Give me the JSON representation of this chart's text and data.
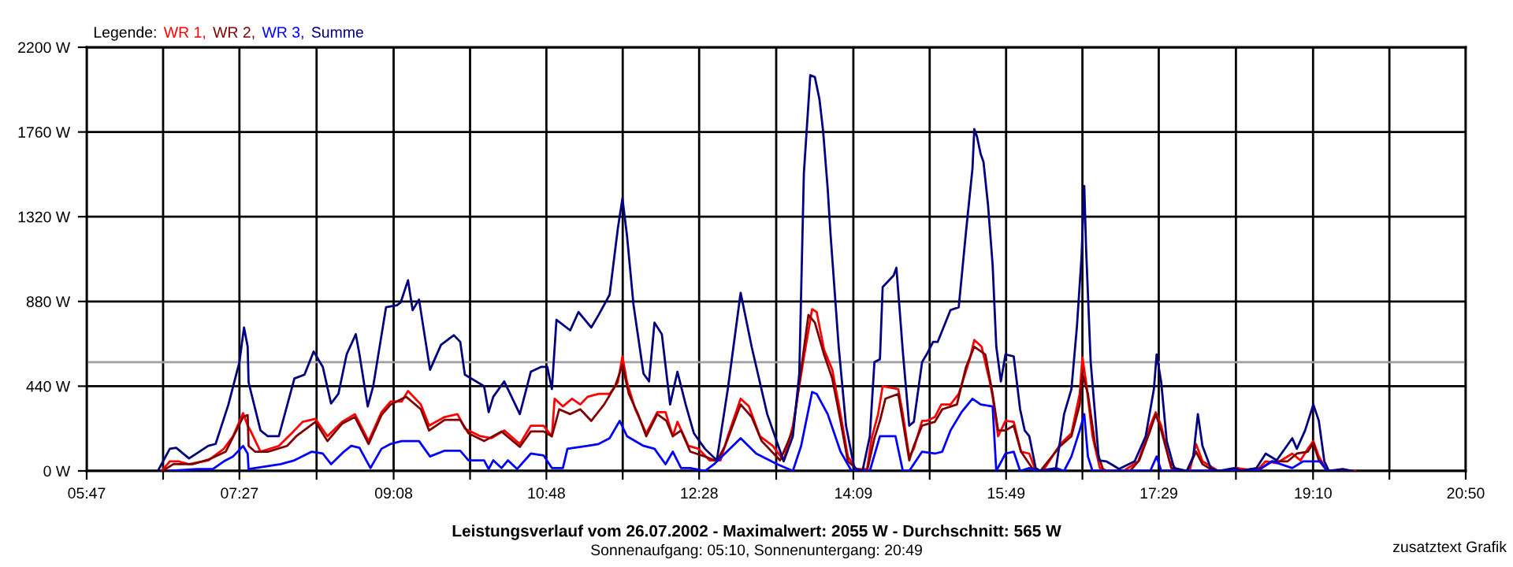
{
  "chart_data": {
    "type": "line",
    "title": "Leistungsverlauf vom 26.07.2002 - Maximalwert: 2055 W - Durchschnitt: 565 W",
    "subtitle": "Sonnenaufgang: 05:10, Sonnenuntergang: 20:49",
    "legend_title": "Legende:",
    "legend": "top left",
    "grid": true,
    "marker": "none",
    "line_style": "solid",
    "annotations": [
      "zusatztext Grafik"
    ],
    "xlim": [
      5.783,
      20.833
    ],
    "xticks": [
      {
        "value": 5.783,
        "label": "05:47"
      },
      {
        "value": 6.617,
        "label": null
      },
      {
        "value": 7.45,
        "label": "07:27"
      },
      {
        "value": 8.292,
        "label": null
      },
      {
        "value": 9.133,
        "label": "09:08"
      },
      {
        "value": 9.967,
        "label": null
      },
      {
        "value": 10.8,
        "label": "10:48"
      },
      {
        "value": 11.633,
        "label": null
      },
      {
        "value": 12.467,
        "label": "12:28"
      },
      {
        "value": 13.308,
        "label": null
      },
      {
        "value": 14.15,
        "label": "14:09"
      },
      {
        "value": 14.983,
        "label": null
      },
      {
        "value": 15.817,
        "label": "15:49"
      },
      {
        "value": 16.65,
        "label": null
      },
      {
        "value": 17.483,
        "label": "17:29"
      },
      {
        "value": 18.325,
        "label": null
      },
      {
        "value": 19.167,
        "label": "19:10"
      },
      {
        "value": 20.0,
        "label": null
      },
      {
        "value": 20.833,
        "label": "20:50"
      }
    ],
    "ylim": [
      0,
      2200
    ],
    "yticks": [
      {
        "value": 0,
        "label": "0 W"
      },
      {
        "value": 440,
        "label": "440 W"
      },
      {
        "value": 880,
        "label": "880 W"
      },
      {
        "value": 1320,
        "label": "1320 W"
      },
      {
        "value": 1760,
        "label": "1760 W"
      },
      {
        "value": 2200,
        "label": "2200 W"
      }
    ],
    "ref_lines": [
      {
        "axis": "y",
        "value": 565,
        "color": "#a0a0a0"
      }
    ],
    "series": [
      {
        "name": "WR 1,",
        "color": "#ff0000",
        "x": [
          6.61,
          6.69,
          6.78,
          6.9,
          7.11,
          7.28,
          7.38,
          7.49,
          7.54,
          7.57,
          7.68,
          7.88,
          8.02,
          8.14,
          8.28,
          8.41,
          8.57,
          8.71,
          8.86,
          9.0,
          9.1,
          9.22,
          9.29,
          9.43,
          9.52,
          9.69,
          9.83,
          9.91,
          10.08,
          10.2,
          10.34,
          10.51,
          10.63,
          10.77,
          10.86,
          10.89,
          10.98,
          11.08,
          11.17,
          11.25,
          11.37,
          11.49,
          11.58,
          11.63,
          11.68,
          11.77,
          11.89,
          12.01,
          12.1,
          12.18,
          12.23,
          12.35,
          12.46,
          12.58,
          12.7,
          12.78,
          12.92,
          13.01,
          13.13,
          13.27,
          13.39,
          13.49,
          13.61,
          13.7,
          13.75,
          13.83,
          13.92,
          14.01,
          14.09,
          14.18,
          14.3,
          14.35,
          14.42,
          14.47,
          14.64,
          14.69,
          14.76,
          14.81,
          14.9,
          14.95,
          15.04,
          15.11,
          15.21,
          15.3,
          15.42,
          15.47,
          15.55,
          15.64,
          15.67,
          15.73,
          15.81,
          15.9,
          15.98,
          16.07,
          16.14,
          16.19,
          16.24,
          16.41,
          16.53,
          16.62,
          16.65,
          16.69,
          16.76,
          16.84,
          16.93,
          17.1,
          17.26,
          17.39,
          17.45,
          17.51,
          17.6,
          17.69,
          17.82,
          17.89,
          17.96,
          18.13,
          18.29,
          18.34,
          18.55,
          18.65,
          18.77,
          18.94,
          19.03,
          19.11,
          19.17,
          19.23,
          19.32,
          19.51,
          19.63
        ],
        "values": [
          5,
          50,
          50,
          35,
          55,
          115,
          180,
          300,
          235,
          210,
          100,
          130,
          195,
          255,
          270,
          180,
          255,
          295,
          155,
          305,
          360,
          360,
          415,
          345,
          235,
          280,
          295,
          220,
          180,
          170,
          210,
          140,
          235,
          235,
          180,
          375,
          335,
          375,
          345,
          385,
          400,
          400,
          460,
          595,
          460,
          320,
          195,
          305,
          305,
          180,
          255,
          130,
          115,
          55,
          55,
          180,
          375,
          335,
          180,
          130,
          55,
          235,
          590,
          840,
          825,
          630,
          525,
          295,
          75,
          10,
          10,
          170,
          295,
          440,
          425,
          295,
          75,
          115,
          260,
          260,
          280,
          345,
          345,
          400,
          580,
          680,
          645,
          460,
          385,
          180,
          260,
          255,
          100,
          90,
          0,
          0,
          15,
          140,
          195,
          400,
          590,
          460,
          180,
          15,
          0,
          0,
          50,
          235,
          305,
          235,
          50,
          0,
          0,
          140,
          50,
          0,
          0,
          15,
          0,
          50,
          40,
          90,
          55,
          115,
          155,
          75,
          0,
          0,
          0
        ]
      },
      {
        "name": "WR 2,",
        "color": "#800000",
        "x": [
          6.61,
          6.73,
          6.94,
          7.12,
          7.3,
          7.49,
          7.54,
          7.55,
          7.62,
          7.76,
          7.97,
          8.07,
          8.28,
          8.41,
          8.57,
          8.71,
          8.86,
          9.0,
          9.1,
          9.27,
          9.43,
          9.52,
          9.69,
          9.86,
          9.95,
          10.12,
          10.31,
          10.51,
          10.63,
          10.77,
          10.86,
          10.94,
          11.06,
          11.17,
          11.29,
          11.43,
          11.55,
          11.63,
          11.7,
          11.8,
          11.89,
          12.01,
          12.11,
          12.18,
          12.27,
          12.37,
          12.53,
          12.66,
          12.75,
          12.92,
          13.04,
          13.15,
          13.35,
          13.49,
          13.58,
          13.66,
          13.73,
          13.83,
          13.92,
          14.01,
          14.09,
          14.21,
          14.3,
          14.38,
          14.44,
          14.5,
          14.64,
          14.69,
          14.76,
          14.81,
          14.9,
          15.04,
          15.12,
          15.28,
          15.38,
          15.47,
          15.59,
          15.67,
          15.73,
          15.81,
          15.9,
          15.98,
          16.1,
          16.19,
          16.41,
          16.53,
          16.62,
          16.65,
          16.71,
          16.79,
          16.88,
          17.17,
          17.27,
          17.39,
          17.45,
          17.51,
          17.62,
          17.79,
          17.89,
          17.96,
          18.08,
          18.31,
          18.6,
          18.72,
          18.89,
          18.99,
          19.11,
          19.17,
          19.23,
          19.32,
          19.51
        ],
        "values": [
          0,
          35,
          35,
          60,
          100,
          280,
          290,
          130,
          100,
          100,
          130,
          180,
          255,
          155,
          245,
          280,
          140,
          290,
          345,
          385,
          320,
          210,
          265,
          265,
          195,
          155,
          205,
          125,
          205,
          205,
          180,
          320,
          295,
          320,
          260,
          345,
          440,
          550,
          400,
          295,
          180,
          295,
          260,
          180,
          210,
          100,
          75,
          50,
          130,
          345,
          280,
          155,
          55,
          210,
          525,
          810,
          770,
          605,
          480,
          260,
          50,
          0,
          0,
          170,
          260,
          375,
          400,
          260,
          55,
          130,
          235,
          255,
          320,
          345,
          540,
          645,
          605,
          400,
          210,
          210,
          235,
          100,
          15,
          0,
          130,
          180,
          345,
          505,
          400,
          130,
          0,
          0,
          55,
          210,
          295,
          210,
          15,
          0,
          100,
          35,
          0,
          0,
          15,
          50,
          50,
          90,
          100,
          145,
          55,
          0,
          0
        ]
      },
      {
        "name": "WR 3,",
        "color": "#0000ff",
        "x": [
          6.69,
          6.99,
          7.16,
          7.28,
          7.38,
          7.49,
          7.54,
          7.55,
          7.62,
          7.9,
          8.05,
          8.24,
          8.36,
          8.45,
          8.59,
          8.67,
          8.76,
          8.88,
          9.0,
          9.1,
          9.22,
          9.41,
          9.53,
          9.69,
          9.86,
          9.95,
          10.12,
          10.17,
          10.22,
          10.31,
          10.38,
          10.48,
          10.63,
          10.77,
          10.86,
          10.98,
          11.03,
          11.25,
          11.37,
          11.49,
          11.6,
          11.68,
          11.86,
          11.98,
          12.1,
          12.18,
          12.27,
          12.37,
          12.53,
          12.63,
          12.92,
          13.09,
          13.32,
          13.49,
          13.58,
          13.7,
          13.75,
          13.87,
          14.01,
          14.13,
          14.33,
          14.44,
          14.61,
          14.69,
          14.76,
          14.9,
          15.04,
          15.12,
          15.21,
          15.33,
          15.45,
          15.54,
          15.67,
          15.71,
          15.81,
          15.9,
          15.97,
          16.07,
          16.16,
          16.36,
          16.45,
          16.53,
          16.62,
          16.67,
          16.71,
          16.76,
          17.39,
          17.46,
          17.51,
          17.88,
          18.56,
          18.72,
          18.94,
          19.06,
          19.15,
          19.25,
          19.32
        ],
        "values": [
          0,
          10,
          10,
          50,
          75,
          130,
          90,
          10,
          15,
          35,
          55,
          100,
          90,
          35,
          100,
          130,
          120,
          15,
          115,
          140,
          155,
          155,
          75,
          105,
          105,
          55,
          55,
          10,
          55,
          15,
          55,
          10,
          90,
          80,
          15,
          15,
          115,
          130,
          140,
          170,
          260,
          180,
          130,
          115,
          35,
          100,
          15,
          15,
          0,
          35,
          170,
          90,
          35,
          0,
          130,
          410,
          400,
          295,
          100,
          0,
          0,
          180,
          180,
          0,
          0,
          100,
          90,
          100,
          210,
          305,
          375,
          345,
          335,
          0,
          90,
          100,
          0,
          15,
          0,
          15,
          0,
          75,
          210,
          295,
          75,
          0,
          0,
          75,
          0,
          0,
          0,
          50,
          15,
          50,
          50,
          50,
          0
        ]
      },
      {
        "name": "Summe",
        "color": "#000080",
        "x": [
          6.56,
          6.69,
          6.76,
          6.9,
          7.11,
          7.19,
          7.33,
          7.45,
          7.5,
          7.54,
          7.55,
          7.68,
          7.76,
          7.88,
          8.05,
          8.16,
          8.26,
          8.36,
          8.45,
          8.53,
          8.62,
          8.72,
          8.76,
          8.85,
          8.91,
          9.05,
          9.17,
          9.21,
          9.29,
          9.34,
          9.41,
          9.53,
          9.65,
          9.79,
          9.86,
          9.91,
          10.12,
          10.17,
          10.22,
          10.34,
          10.51,
          10.63,
          10.74,
          10.81,
          10.86,
          10.91,
          11.06,
          11.15,
          11.29,
          11.37,
          11.49,
          11.58,
          11.63,
          11.68,
          11.75,
          11.86,
          11.92,
          11.98,
          12.06,
          12.15,
          12.23,
          12.32,
          12.41,
          12.53,
          12.66,
          12.78,
          12.92,
          13.04,
          13.21,
          13.39,
          13.49,
          13.56,
          13.61,
          13.68,
          13.73,
          13.78,
          13.82,
          13.87,
          13.9,
          13.99,
          14.07,
          14.16,
          14.25,
          14.33,
          14.38,
          14.44,
          14.47,
          14.59,
          14.62,
          14.69,
          14.76,
          14.81,
          14.9,
          14.95,
          15.02,
          15.07,
          15.21,
          15.3,
          15.38,
          15.45,
          15.47,
          15.5,
          15.54,
          15.57,
          15.62,
          15.67,
          15.71,
          15.76,
          15.81,
          15.9,
          15.97,
          16.02,
          16.07,
          16.14,
          16.19,
          16.36,
          16.45,
          16.53,
          16.59,
          16.64,
          16.67,
          16.69,
          16.74,
          16.83,
          16.91,
          17.05,
          17.22,
          17.34,
          17.43,
          17.46,
          17.51,
          17.57,
          17.65,
          17.79,
          17.86,
          17.91,
          17.96,
          18.05,
          18.13,
          18.31,
          18.39,
          18.55,
          18.65,
          18.77,
          18.94,
          18.99,
          19.08,
          19.17,
          19.23,
          19.29,
          19.34,
          19.49,
          19.6
        ],
        "values": [
          0,
          115,
          120,
          65,
          130,
          140,
          345,
          565,
          745,
          645,
          460,
          210,
          180,
          180,
          480,
          500,
          620,
          540,
          350,
          400,
          605,
          710,
          605,
          335,
          440,
          850,
          860,
          875,
          990,
          835,
          890,
          525,
          655,
          705,
          670,
          500,
          440,
          305,
          385,
          465,
          295,
          515,
          540,
          540,
          425,
          785,
          730,
          825,
          745,
          810,
          915,
          1260,
          1415,
          1220,
          865,
          505,
          465,
          770,
          710,
          345,
          515,
          345,
          195,
          115,
          55,
          425,
          925,
          645,
          295,
          50,
          180,
          505,
          1545,
          2055,
          2045,
          1930,
          1765,
          1465,
          1235,
          645,
          235,
          15,
          0,
          180,
          565,
          580,
          955,
          1015,
          1055,
          620,
          235,
          255,
          565,
          605,
          670,
          670,
          835,
          850,
          1245,
          1570,
          1775,
          1735,
          1645,
          1605,
          1380,
          1070,
          645,
          465,
          605,
          595,
          320,
          210,
          180,
          15,
          0,
          10,
          295,
          425,
          750,
          1110,
          1480,
          1155,
          565,
          55,
          50,
          10,
          50,
          180,
          425,
          605,
          460,
          155,
          15,
          0,
          75,
          295,
          130,
          15,
          0,
          15,
          0,
          15,
          90,
          55,
          170,
          115,
          210,
          345,
          260,
          50,
          0,
          10,
          0
        ]
      }
    ]
  }
}
